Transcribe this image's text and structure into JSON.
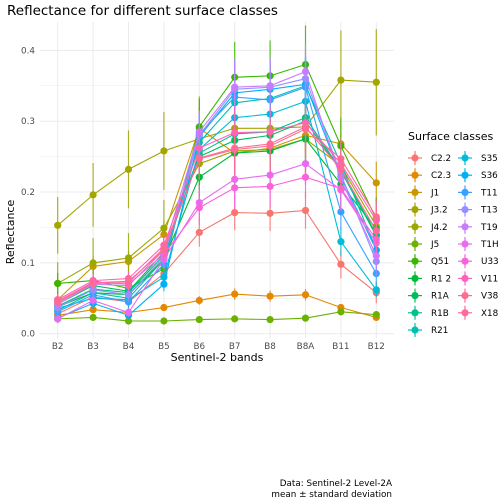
{
  "chart_data": {
    "type": "line",
    "title": "Reflectance for different surface classes",
    "xlabel": "Sentinel-2 bands",
    "ylabel": "Reflectance",
    "categories": [
      "B2",
      "B3",
      "B4",
      "B5",
      "B6",
      "B7",
      "B8",
      "B8A",
      "B11",
      "B12"
    ],
    "yticks": [
      "0.0",
      "0.1",
      "0.2",
      "0.3",
      "0.4"
    ],
    "ylim": [
      -0.006,
      0.44
    ],
    "grid": true,
    "legend_title": "Surface classes",
    "legend_placement": "right",
    "caption": [
      "Data: Sentinel-2 Level-2A",
      "mean ± standard deviation"
    ],
    "series": [
      {
        "name": "C2.2",
        "color": "#F8766D",
        "values": [
          0.028,
          0.052,
          0.045,
          0.085,
          0.143,
          0.171,
          0.17,
          0.174,
          0.098,
          0.058
        ],
        "sd": [
          0.008,
          0.01,
          0.01,
          0.015,
          0.02,
          0.025,
          0.025,
          0.026,
          0.02,
          0.015
        ]
      },
      {
        "name": "C2.3",
        "color": "#E58700",
        "values": [
          0.026,
          0.034,
          0.03,
          0.037,
          0.047,
          0.056,
          0.053,
          0.055,
          0.037,
          0.023
        ],
        "sd": [
          0.005,
          0.005,
          0.005,
          0.005,
          0.006,
          0.008,
          0.008,
          0.008,
          0.005,
          0.004
        ]
      },
      {
        "name": "J1",
        "color": "#C99800",
        "values": [
          0.048,
          0.095,
          0.102,
          0.14,
          0.29,
          0.255,
          0.262,
          0.28,
          0.268,
          0.213
        ],
        "sd": [
          0.01,
          0.015,
          0.015,
          0.02,
          0.03,
          0.03,
          0.03,
          0.03,
          0.03,
          0.03
        ]
      },
      {
        "name": "J3.2",
        "color": "#A3A500",
        "values": [
          0.153,
          0.196,
          0.232,
          0.258,
          0.275,
          0.29,
          0.29,
          0.292,
          0.358,
          0.355
        ],
        "sd": [
          0.04,
          0.045,
          0.055,
          0.055,
          0.06,
          0.065,
          0.065,
          0.065,
          0.07,
          0.075
        ]
      },
      {
        "name": "J4.2",
        "color": "#9AA800",
        "values": [
          0.071,
          0.1,
          0.107,
          0.149,
          0.24,
          0.258,
          0.26,
          0.275,
          0.237,
          0.152
        ],
        "sd": [
          0.03,
          0.035,
          0.035,
          0.04,
          0.045,
          0.05,
          0.05,
          0.05,
          0.045,
          0.04
        ]
      },
      {
        "name": "J5",
        "color": "#6BB100",
        "values": [
          0.021,
          0.023,
          0.018,
          0.018,
          0.02,
          0.021,
          0.02,
          0.022,
          0.031,
          0.027
        ],
        "sd": [
          0.004,
          0.004,
          0.003,
          0.003,
          0.004,
          0.004,
          0.004,
          0.004,
          0.005,
          0.005
        ]
      },
      {
        "name": "Q51",
        "color": "#39B600",
        "values": [
          0.071,
          0.075,
          0.064,
          0.092,
          0.292,
          0.362,
          0.364,
          0.38,
          0.265,
          0.162
        ],
        "sd": [
          0.015,
          0.015,
          0.015,
          0.02,
          0.04,
          0.05,
          0.05,
          0.055,
          0.04,
          0.03
        ]
      },
      {
        "name": "R1 2",
        "color": "#00BA38",
        "values": [
          0.038,
          0.058,
          0.055,
          0.105,
          0.221,
          0.255,
          0.258,
          0.275,
          0.211,
          0.148
        ],
        "sd": [
          0.008,
          0.01,
          0.01,
          0.015,
          0.03,
          0.035,
          0.035,
          0.035,
          0.03,
          0.025
        ]
      },
      {
        "name": "R1A",
        "color": "#00BD5C",
        "values": [
          0.042,
          0.068,
          0.06,
          0.115,
          0.25,
          0.273,
          0.28,
          0.3,
          0.23,
          0.138
        ],
        "sd": [
          0.008,
          0.01,
          0.01,
          0.015,
          0.03,
          0.035,
          0.035,
          0.035,
          0.03,
          0.025
        ]
      },
      {
        "name": "R1B",
        "color": "#00C08B",
        "values": [
          0.039,
          0.063,
          0.058,
          0.111,
          0.255,
          0.282,
          0.285,
          0.305,
          0.231,
          0.14
        ],
        "sd": [
          0.008,
          0.01,
          0.01,
          0.015,
          0.03,
          0.035,
          0.035,
          0.035,
          0.03,
          0.025
        ]
      },
      {
        "name": "R21",
        "color": "#00C0AF",
        "values": [
          0.033,
          0.058,
          0.05,
          0.105,
          0.27,
          0.326,
          0.332,
          0.35,
          0.24,
          0.118
        ],
        "sd": [
          0.008,
          0.01,
          0.01,
          0.015,
          0.03,
          0.04,
          0.04,
          0.04,
          0.03,
          0.02
        ]
      },
      {
        "name": "S35",
        "color": "#00BCD8",
        "values": [
          0.036,
          0.05,
          0.048,
          0.08,
          0.26,
          0.305,
          0.31,
          0.328,
          0.13,
          0.062
        ],
        "sd": [
          0.008,
          0.01,
          0.01,
          0.012,
          0.03,
          0.035,
          0.035,
          0.035,
          0.02,
          0.01
        ]
      },
      {
        "name": "S36",
        "color": "#00B0F6",
        "values": [
          0.022,
          0.043,
          0.026,
          0.07,
          0.278,
          0.34,
          0.345,
          0.352,
          0.222,
          0.118
        ],
        "sd": [
          0.006,
          0.008,
          0.006,
          0.01,
          0.03,
          0.04,
          0.04,
          0.04,
          0.03,
          0.02
        ]
      },
      {
        "name": "T11",
        "color": "#35A2FF",
        "values": [
          0.031,
          0.055,
          0.045,
          0.098,
          0.282,
          0.334,
          0.33,
          0.348,
          0.172,
          0.085
        ],
        "sd": [
          0.008,
          0.01,
          0.01,
          0.015,
          0.03,
          0.04,
          0.04,
          0.04,
          0.025,
          0.015
        ]
      },
      {
        "name": "T13",
        "color": "#9590FF",
        "values": [
          0.037,
          0.062,
          0.055,
          0.108,
          0.28,
          0.345,
          0.348,
          0.36,
          0.225,
          0.102
        ],
        "sd": [
          0.008,
          0.01,
          0.01,
          0.015,
          0.03,
          0.04,
          0.04,
          0.04,
          0.03,
          0.02
        ]
      },
      {
        "name": "T19",
        "color": "#C77CFF",
        "values": [
          0.042,
          0.07,
          0.068,
          0.118,
          0.285,
          0.348,
          0.35,
          0.37,
          0.218,
          0.11
        ],
        "sd": [
          0.008,
          0.01,
          0.01,
          0.015,
          0.03,
          0.04,
          0.04,
          0.04,
          0.03,
          0.02
        ]
      },
      {
        "name": "T1H",
        "color": "#E76BF3",
        "values": [
          0.021,
          0.047,
          0.03,
          0.105,
          0.185,
          0.218,
          0.224,
          0.24,
          0.203,
          0.128
        ],
        "sd": [
          0.006,
          0.008,
          0.006,
          0.015,
          0.025,
          0.03,
          0.03,
          0.03,
          0.03,
          0.02
        ]
      },
      {
        "name": "U33",
        "color": "#FA62DB",
        "values": [
          0.045,
          0.073,
          0.07,
          0.112,
          0.178,
          0.206,
          0.208,
          0.221,
          0.205,
          0.133
        ],
        "sd": [
          0.008,
          0.01,
          0.01,
          0.015,
          0.025,
          0.03,
          0.03,
          0.03,
          0.03,
          0.02
        ]
      },
      {
        "name": "V11",
        "color": "#FF62BC",
        "values": [
          0.048,
          0.075,
          0.078,
          0.125,
          0.262,
          0.284,
          0.285,
          0.298,
          0.24,
          0.16
        ],
        "sd": [
          0.008,
          0.01,
          0.01,
          0.015,
          0.03,
          0.035,
          0.035,
          0.035,
          0.03,
          0.025
        ]
      },
      {
        "name": "V38",
        "color": "#FF6C91",
        "values": [
          0.044,
          0.071,
          0.072,
          0.121,
          0.247,
          0.26,
          0.265,
          0.289,
          0.247,
          0.165
        ],
        "sd": [
          0.008,
          0.01,
          0.01,
          0.015,
          0.03,
          0.035,
          0.035,
          0.035,
          0.03,
          0.025
        ]
      },
      {
        "name": "X18",
        "color": "#FF6A98",
        "values": [
          0.046,
          0.072,
          0.074,
          0.118,
          0.248,
          0.262,
          0.268,
          0.292,
          0.232,
          0.145
        ],
        "sd": [
          0.008,
          0.01,
          0.01,
          0.015,
          0.03,
          0.035,
          0.035,
          0.035,
          0.03,
          0.025
        ]
      }
    ]
  }
}
